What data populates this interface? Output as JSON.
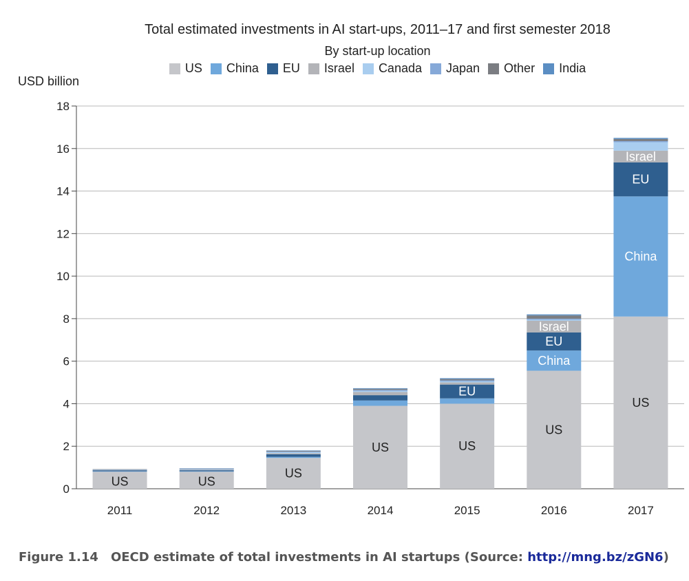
{
  "chart_data": {
    "type": "bar",
    "stacked": true,
    "title": "Total estimated investments in AI start-ups, 2011–17 and first semester 2018",
    "subtitle": "By start-up location",
    "ylabel": "USD billion",
    "xlabel": "",
    "ylim": [
      0,
      18
    ],
    "yticks": [
      0,
      2,
      4,
      6,
      8,
      10,
      12,
      14,
      16,
      18
    ],
    "grid": true,
    "legend_position": "top",
    "categories": [
      "2011",
      "2012",
      "2013",
      "2014",
      "2015",
      "2016",
      "2017"
    ],
    "series": [
      {
        "name": "US",
        "color": "#c5c6ca",
        "values": [
          0.8,
          0.8,
          1.45,
          3.9,
          4.0,
          5.55,
          8.1
        ]
      },
      {
        "name": "China",
        "color": "#6fa8dc",
        "values": [
          0.02,
          0.02,
          0.05,
          0.25,
          0.25,
          0.95,
          5.65
        ]
      },
      {
        "name": "EU",
        "color": "#2f5f8f",
        "values": [
          0.05,
          0.05,
          0.12,
          0.25,
          0.65,
          0.85,
          1.6
        ]
      },
      {
        "name": "Israel",
        "color": "#b3b4b8",
        "values": [
          0.01,
          0.02,
          0.05,
          0.15,
          0.1,
          0.55,
          0.55
        ]
      },
      {
        "name": "Canada",
        "color": "#a9cdef",
        "values": [
          0.01,
          0.02,
          0.05,
          0.05,
          0.05,
          0.05,
          0.4
        ]
      },
      {
        "name": "Japan",
        "color": "#86a9d8",
        "values": [
          0.01,
          0.02,
          0.03,
          0.05,
          0.05,
          0.05,
          0.05
        ]
      },
      {
        "name": "Other",
        "color": "#7b7d82",
        "values": [
          0.02,
          0.02,
          0.03,
          0.05,
          0.06,
          0.15,
          0.1
        ]
      },
      {
        "name": "India",
        "color": "#5b8ec3",
        "values": [
          0.0,
          0.01,
          0.02,
          0.03,
          0.04,
          0.05,
          0.05
        ]
      }
    ],
    "segment_labels": [
      {
        "category": "2011",
        "series": "US",
        "text": "US",
        "color": "#222222"
      },
      {
        "category": "2012",
        "series": "US",
        "text": "US",
        "color": "#222222"
      },
      {
        "category": "2013",
        "series": "US",
        "text": "US",
        "color": "#222222"
      },
      {
        "category": "2014",
        "series": "US",
        "text": "US",
        "color": "#222222"
      },
      {
        "category": "2015",
        "series": "US",
        "text": "US",
        "color": "#222222"
      },
      {
        "category": "2015",
        "series": "EU",
        "text": "EU",
        "color": "#ffffff"
      },
      {
        "category": "2016",
        "series": "US",
        "text": "US",
        "color": "#222222"
      },
      {
        "category": "2016",
        "series": "China",
        "text": "China",
        "color": "#ffffff"
      },
      {
        "category": "2016",
        "series": "EU",
        "text": "EU",
        "color": "#ffffff"
      },
      {
        "category": "2016",
        "series": "Israel",
        "text": "Israel",
        "color": "#ffffff"
      },
      {
        "category": "2017",
        "series": "US",
        "text": "US",
        "color": "#222222"
      },
      {
        "category": "2017",
        "series": "China",
        "text": "China",
        "color": "#ffffff"
      },
      {
        "category": "2017",
        "series": "EU",
        "text": "EU",
        "color": "#ffffff"
      },
      {
        "category": "2017",
        "series": "Israel",
        "text": "Israel",
        "color": "#ffffff"
      }
    ]
  },
  "caption": {
    "figure_number": "Figure 1.14",
    "text": "OECD estimate of total investments in AI startups (Source: ",
    "link": "http://mng.bz/zGN6",
    "close": ")"
  }
}
